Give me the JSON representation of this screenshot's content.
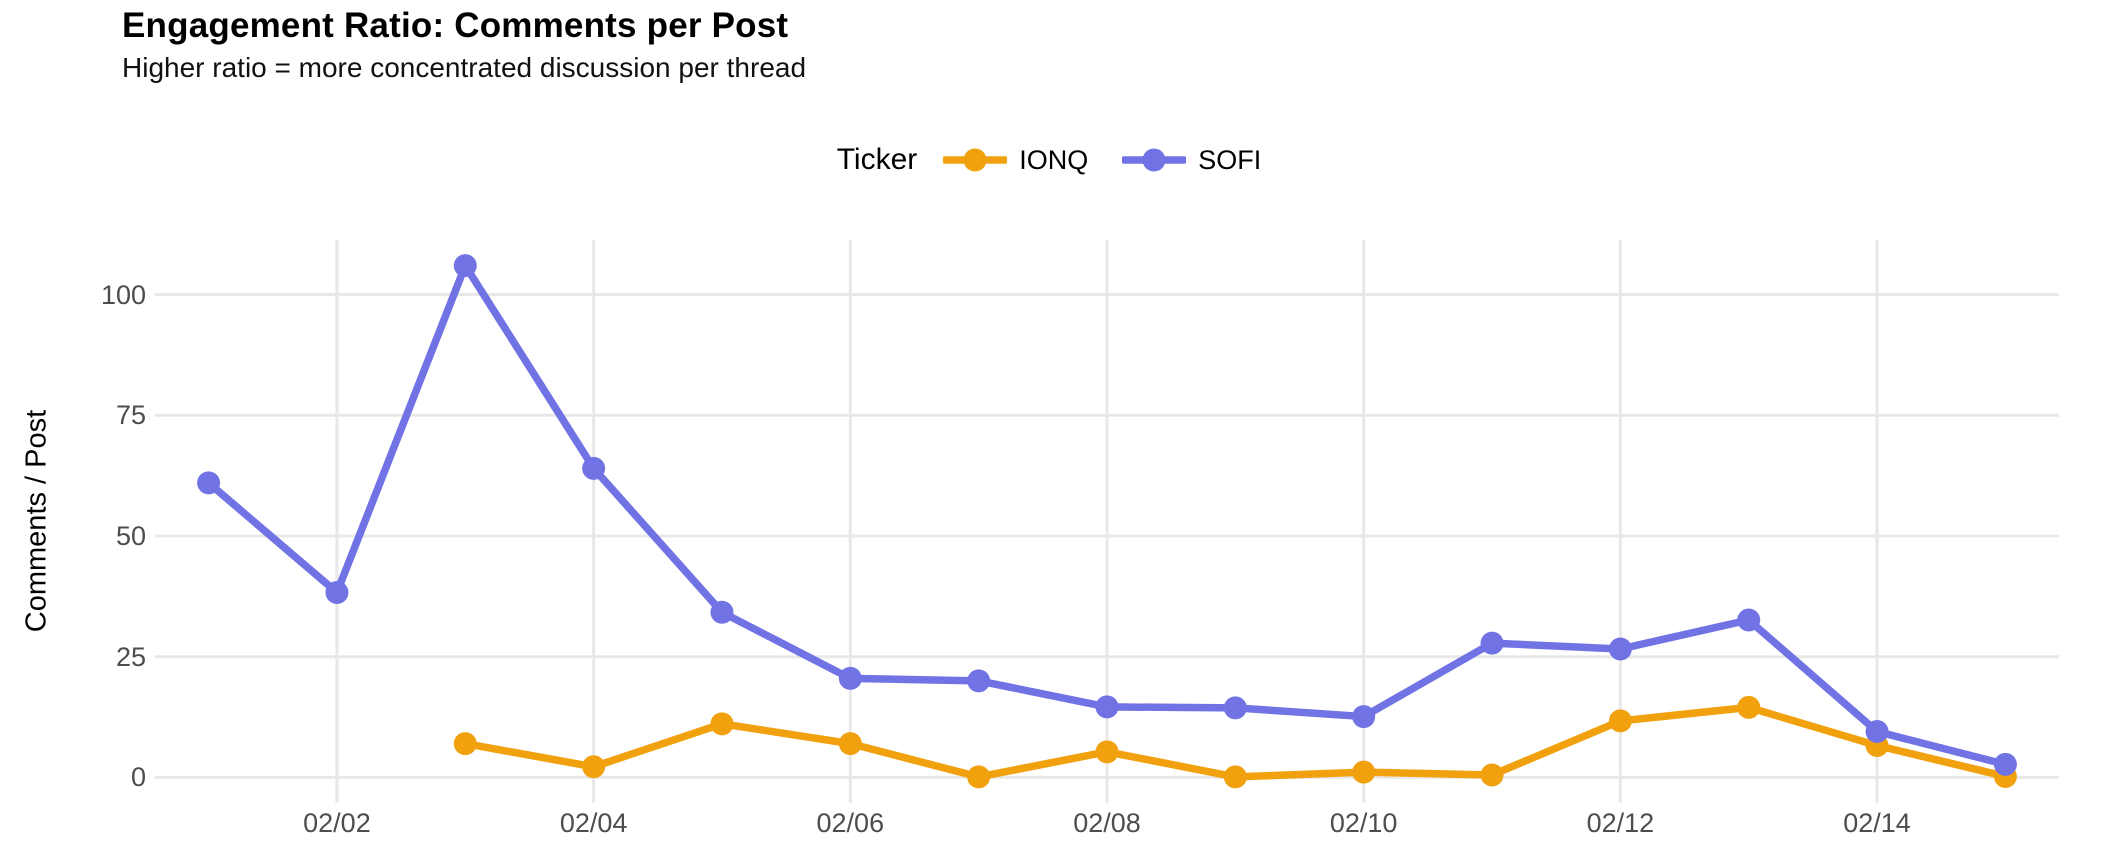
{
  "header": {
    "title": "Engagement Ratio: Comments per Post",
    "subtitle": "Higher ratio = more concentrated discussion per thread"
  },
  "legend": {
    "title": "Ticker"
  },
  "chart_data": {
    "type": "line",
    "title": "Engagement Ratio: Comments per Post",
    "subtitle": "Higher ratio = more concentrated discussion per thread",
    "xlabel": "",
    "ylabel": "Comments / Post",
    "categories": [
      "02/01",
      "02/02",
      "02/03",
      "02/04",
      "02/05",
      "02/06",
      "02/07",
      "02/08",
      "02/09",
      "02/10",
      "02/11",
      "02/12",
      "02/13",
      "02/14",
      "02/15"
    ],
    "series": [
      {
        "name": "IONQ",
        "color": "#F2A10E",
        "values": [
          null,
          null,
          7,
          2.2,
          11.1,
          7,
          0.1,
          5.3,
          0.1,
          1.1,
          0.5,
          11.7,
          14.5,
          6.6,
          0.2
        ]
      },
      {
        "name": "SOFI",
        "color": "#7173E5",
        "values": [
          61,
          38.3,
          106,
          64,
          34.2,
          20.5,
          20,
          14.6,
          14.4,
          12.6,
          27.8,
          26.6,
          32.6,
          9.5,
          2.7
        ]
      }
    ],
    "x_ticks": [
      {
        "index": 2,
        "label": "02/02"
      },
      {
        "index": 4,
        "label": "02/04"
      },
      {
        "index": 6,
        "label": "02/06"
      },
      {
        "index": 8,
        "label": "02/08"
      },
      {
        "index": 10,
        "label": "02/10"
      },
      {
        "index": 12,
        "label": "02/12"
      },
      {
        "index": 14,
        "label": "02/14"
      }
    ],
    "y_ticks": [
      0,
      25,
      50,
      75,
      100
    ],
    "ylim": [
      -5.3,
      111.3
    ],
    "grid": true,
    "grid_color": "#E8E8E8",
    "tick_text_color": "#4d4d4d",
    "legend_position": "top-center",
    "background": "#ffffff"
  }
}
